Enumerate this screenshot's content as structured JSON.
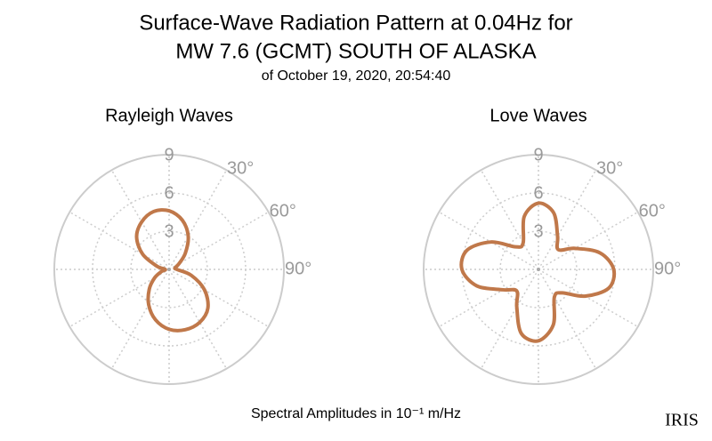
{
  "title": [
    "Surface-Wave Radiation Pattern at 0.04Hz for",
    "MW 7.6 (GCMT) SOUTH OF ALASKA"
  ],
  "subtitle": "of October 19, 2020, 20:54:40",
  "caption": "Spectral Amplitudes in 10⁻¹ m/Hz",
  "logo": "IRIS",
  "chart_data": [
    {
      "type": "polar",
      "title": "Rayleigh Waves",
      "theta": [
        0,
        15,
        30,
        45,
        60,
        75,
        90,
        105,
        120,
        135,
        150,
        165,
        180,
        195,
        210,
        225,
        240,
        255,
        270,
        285,
        300,
        315,
        330,
        345
      ],
      "series": [
        {
          "color": "#c0784a",
          "values": [
            4.6,
            4.0,
            3.0,
            1.8,
            0.9,
            0.5,
            0.6,
            1.8,
            3.2,
            4.3,
            4.8,
            4.9,
            4.7,
            4.1,
            3.2,
            2.2,
            1.3,
            0.6,
            0.3,
            1.0,
            2.4,
            3.6,
            4.3,
            4.7
          ]
        }
      ],
      "rlim": [
        0,
        9
      ],
      "rticks": [
        3,
        6,
        9
      ],
      "theta_grid": [
        0,
        30,
        60,
        90,
        120,
        150,
        180,
        210,
        240,
        270,
        300,
        330
      ],
      "thetaticks": [
        {
          "value": 30,
          "label": "30°"
        },
        {
          "value": 60,
          "label": "60°"
        },
        {
          "value": 90,
          "label": "90°"
        }
      ]
    },
    {
      "type": "polar",
      "title": "Love Waves",
      "theta": [
        0,
        15,
        30,
        45,
        60,
        75,
        90,
        105,
        120,
        135,
        150,
        165,
        180,
        195,
        210,
        225,
        240,
        255,
        270,
        285,
        300,
        315,
        330,
        345
      ],
      "series": [
        {
          "color": "#c0784a",
          "values": [
            5.2,
            4.6,
            3.0,
            2.2,
            3.3,
            5.0,
            5.9,
            5.7,
            4.2,
            2.6,
            2.5,
            4.5,
            5.6,
            5.2,
            3.4,
            2.4,
            3.2,
            5.0,
            6.0,
            5.8,
            4.3,
            2.5,
            2.4,
            4.3
          ]
        }
      ],
      "rlim": [
        0,
        9
      ],
      "rticks": [
        3,
        6,
        9
      ],
      "theta_grid": [
        0,
        30,
        60,
        90,
        120,
        150,
        180,
        210,
        240,
        270,
        300,
        330
      ],
      "thetaticks": [
        {
          "value": 30,
          "label": "30°"
        },
        {
          "value": 60,
          "label": "60°"
        },
        {
          "value": 90,
          "label": "90°"
        }
      ]
    }
  ]
}
